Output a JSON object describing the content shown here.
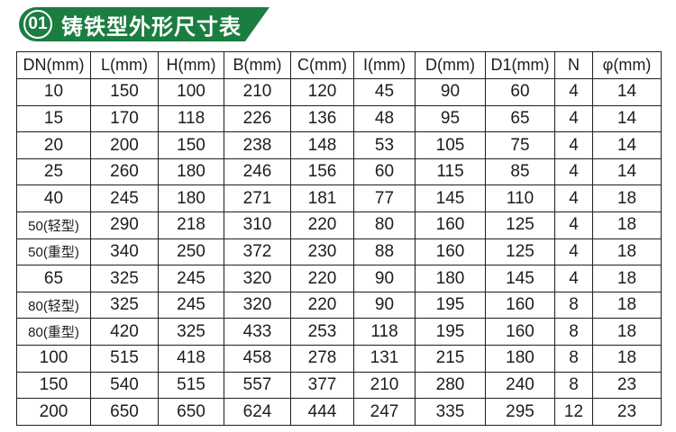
{
  "banner": {
    "number": "01",
    "title": "铸铁型外形尺寸表"
  },
  "colors": {
    "banner_green": "#1b7d40",
    "banner_text": "#ffffff",
    "table_border": "#1f1f1f",
    "page_background": "#ffffff"
  },
  "table": {
    "columns": [
      "DN(mm)",
      "L(mm)",
      "H(mm)",
      "B(mm)",
      "C(mm)",
      "I(mm)",
      "D(mm)",
      "D1(mm)",
      "N",
      "φ(mm)"
    ],
    "rows": [
      [
        "10",
        "150",
        "100",
        "210",
        "120",
        "45",
        "90",
        "60",
        "4",
        "14"
      ],
      [
        "15",
        "170",
        "118",
        "226",
        "136",
        "48",
        "95",
        "65",
        "4",
        "14"
      ],
      [
        "20",
        "200",
        "150",
        "238",
        "148",
        "53",
        "105",
        "75",
        "4",
        "14"
      ],
      [
        "25",
        "260",
        "180",
        "246",
        "156",
        "60",
        "115",
        "85",
        "4",
        "14"
      ],
      [
        "40",
        "245",
        "180",
        "271",
        "181",
        "77",
        "145",
        "110",
        "4",
        "18"
      ],
      [
        "50(轻型)",
        "290",
        "218",
        "310",
        "220",
        "80",
        "160",
        "125",
        "4",
        "18"
      ],
      [
        "50(重型)",
        "340",
        "250",
        "372",
        "230",
        "88",
        "160",
        "125",
        "4",
        "18"
      ],
      [
        "65",
        "325",
        "245",
        "320",
        "220",
        "90",
        "180",
        "145",
        "4",
        "18"
      ],
      [
        "80(轻型)",
        "325",
        "245",
        "320",
        "220",
        "90",
        "195",
        "160",
        "8",
        "18"
      ],
      [
        "80(重型)",
        "420",
        "325",
        "433",
        "253",
        "118",
        "195",
        "160",
        "8",
        "18"
      ],
      [
        "100",
        "515",
        "418",
        "458",
        "278",
        "131",
        "215",
        "180",
        "8",
        "18"
      ],
      [
        "150",
        "540",
        "515",
        "557",
        "377",
        "210",
        "280",
        "240",
        "8",
        "23"
      ],
      [
        "200",
        "650",
        "650",
        "624",
        "444",
        "247",
        "335",
        "295",
        "12",
        "23"
      ]
    ]
  }
}
